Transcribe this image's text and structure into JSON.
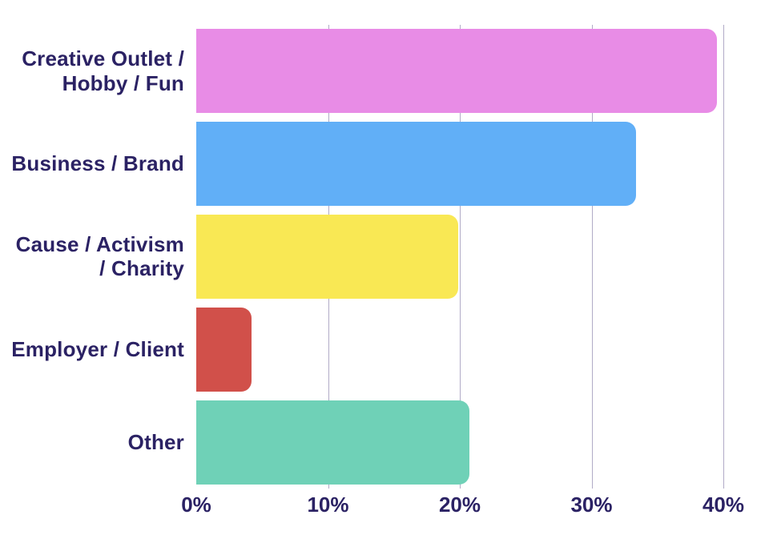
{
  "chart_data": {
    "type": "bar",
    "orientation": "horizontal",
    "title": "",
    "categories": [
      "Creative Outlet / Hobby / Fun",
      "Business / Brand",
      "Cause / Activism / Charity",
      "Employer / Client",
      "Other"
    ],
    "label_lines": [
      [
        "Creative Outlet /",
        "Hobby / Fun"
      ],
      [
        "Business / Brand"
      ],
      [
        "Cause / Activism",
        "/ Charity"
      ],
      [
        "Employer / Client"
      ],
      [
        "Other"
      ]
    ],
    "values": [
      39.5,
      33.4,
      19.9,
      4.2,
      20.7
    ],
    "unit": "%",
    "colors": [
      "#e88ce6",
      "#61aff7",
      "#f9e854",
      "#d1504a",
      "#6fd1b7"
    ],
    "x_ticks": [
      "0%",
      "10%",
      "20%",
      "30%",
      "40%"
    ],
    "x_tick_values": [
      0,
      10,
      20,
      30,
      40
    ],
    "xlim": [
      0,
      40
    ],
    "grid": "vertical-only",
    "legend": "none",
    "text_color": "#2b2264",
    "gridline_color": "#b1abc7",
    "background_color": "#ffffff"
  }
}
